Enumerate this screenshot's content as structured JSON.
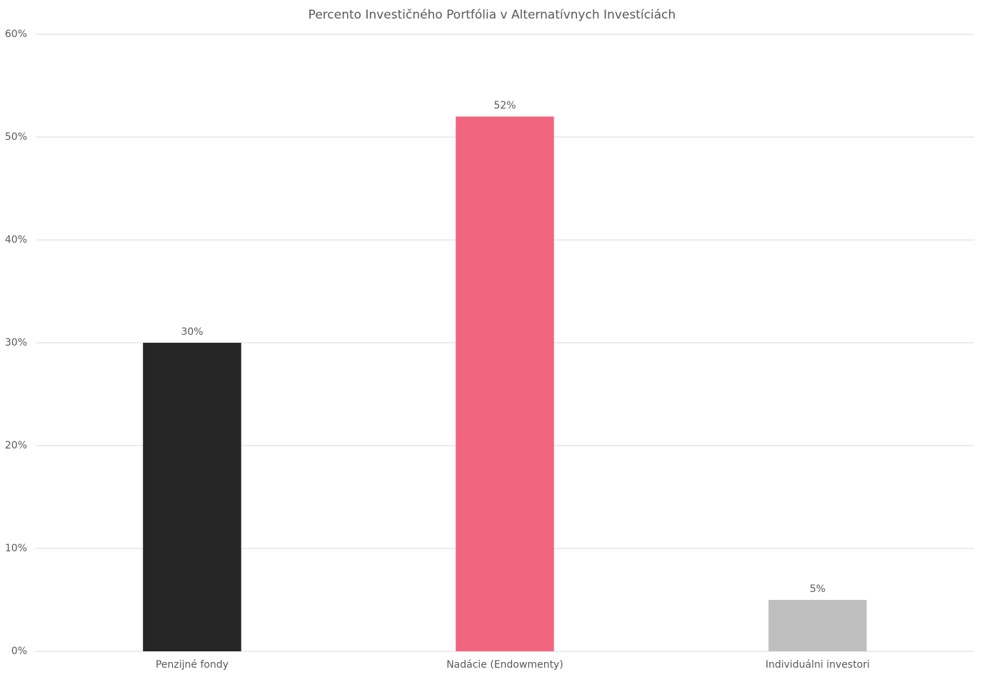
{
  "chart_data": {
    "type": "bar",
    "title": "Percento Investičného Portfólia v  Alternatívnych Investíciách",
    "categories": [
      "Penzijné fondy",
      "Nadácie (Endowmenty)",
      "Individuálni investori"
    ],
    "values": [
      30,
      52,
      5
    ],
    "value_labels": [
      "30%",
      "52%",
      "5%"
    ],
    "colors": [
      "#262626",
      "#f2657e",
      "#bfbfbf"
    ],
    "ylim": [
      0,
      60
    ],
    "yticks": [
      {
        "value": 0,
        "label": "0%"
      },
      {
        "value": 10,
        "label": "10%"
      },
      {
        "value": 20,
        "label": "20%"
      },
      {
        "value": 30,
        "label": "30%"
      },
      {
        "value": 40,
        "label": "40%"
      },
      {
        "value": 50,
        "label": "50%"
      },
      {
        "value": 60,
        "label": "60%"
      }
    ],
    "grid": true
  }
}
